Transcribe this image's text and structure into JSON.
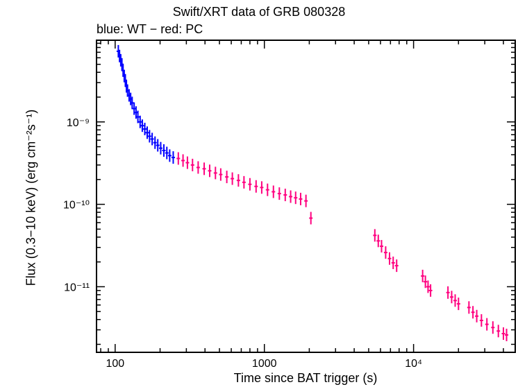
{
  "chart_data": {
    "type": "scatter",
    "title": "Swift/XRT data of GRB 080328",
    "subtitle": "blue: WT − red: PC",
    "xlabel": "Time since BAT trigger (s)",
    "ylabel": "Flux (0.3−10 keV) (erg cm⁻²s⁻¹)",
    "xscale": "log",
    "yscale": "log",
    "xlim": [
      75,
      48000
    ],
    "ylim": [
      1.6e-12,
      9.8e-09
    ],
    "x_ticks": [
      {
        "value": 100,
        "label": "100"
      },
      {
        "value": 1000,
        "label": "1000"
      },
      {
        "value": 10000,
        "label": "10⁴"
      }
    ],
    "y_ticks": [
      {
        "value": 1e-09,
        "label": "10⁻⁹"
      },
      {
        "value": 1e-10,
        "label": "10⁻¹⁰"
      },
      {
        "value": 1e-11,
        "label": "10⁻¹¹"
      }
    ],
    "grid": false,
    "legend": "none",
    "series": [
      {
        "name": "WT",
        "color": "#0000ff",
        "points": [
          [
            105,
            7.2e-09
          ],
          [
            107,
            6.3e-09
          ],
          [
            109,
            5.6e-09
          ],
          [
            111,
            5e-09
          ],
          [
            113,
            4.2e-09
          ],
          [
            115,
            3.6e-09
          ],
          [
            117,
            3.2e-09
          ],
          [
            119,
            2.7e-09
          ],
          [
            121,
            2.4e-09
          ],
          [
            124,
            2.1e-09
          ],
          [
            127,
            1.9e-09
          ],
          [
            130,
            1.7e-09
          ],
          [
            134,
            1.45e-09
          ],
          [
            138,
            1.3e-09
          ],
          [
            142,
            1.15e-09
          ],
          [
            147,
            1e-09
          ],
          [
            152,
            9e-10
          ],
          [
            158,
            8.2e-10
          ],
          [
            164,
            7.4e-10
          ],
          [
            170,
            6.7e-10
          ],
          [
            177,
            6.2e-10
          ],
          [
            185,
            5.6e-10
          ],
          [
            193,
            5.2e-10
          ],
          [
            202,
            4.8e-10
          ],
          [
            212,
            4.5e-10
          ],
          [
            222,
            4.2e-10
          ],
          [
            232,
            3.9e-10
          ],
          [
            245,
            3.7e-10
          ]
        ]
      },
      {
        "name": "PC",
        "color": "#ff007f",
        "points": [
          [
            265,
            3.6e-10
          ],
          [
            285,
            3.4e-10
          ],
          [
            305,
            3.2e-10
          ],
          [
            330,
            3e-10
          ],
          [
            360,
            2.8e-10
          ],
          [
            395,
            2.7e-10
          ],
          [
            430,
            2.55e-10
          ],
          [
            470,
            2.4e-10
          ],
          [
            510,
            2.3e-10
          ],
          [
            560,
            2.15e-10
          ],
          [
            610,
            2.05e-10
          ],
          [
            670,
            1.95e-10
          ],
          [
            730,
            1.85e-10
          ],
          [
            800,
            1.75e-10
          ],
          [
            880,
            1.65e-10
          ],
          [
            960,
            1.6e-10
          ],
          [
            1050,
            1.5e-10
          ],
          [
            1150,
            1.42e-10
          ],
          [
            1260,
            1.35e-10
          ],
          [
            1380,
            1.3e-10
          ],
          [
            1500,
            1.24e-10
          ],
          [
            1620,
            1.2e-10
          ],
          [
            1750,
            1.16e-10
          ],
          [
            1900,
            1.1e-10
          ],
          [
            2050,
            6.8e-11
          ],
          [
            5500,
            4.2e-11
          ],
          [
            5800,
            3.6e-11
          ],
          [
            6100,
            3.1e-11
          ],
          [
            6500,
            2.6e-11
          ],
          [
            6900,
            2.2e-11
          ],
          [
            7300,
            1.95e-11
          ],
          [
            7700,
            1.8e-11
          ],
          [
            11500,
            1.35e-11
          ],
          [
            12000,
            1.15e-11
          ],
          [
            12500,
            1e-11
          ],
          [
            13000,
            9e-12
          ],
          [
            17000,
            8.5e-12
          ],
          [
            18000,
            7.5e-12
          ],
          [
            19000,
            6.8e-12
          ],
          [
            20000,
            6.2e-12
          ],
          [
            23500,
            5.6e-12
          ],
          [
            25000,
            4.9e-12
          ],
          [
            26500,
            4.4e-12
          ],
          [
            28500,
            3.9e-12
          ],
          [
            31000,
            3.5e-12
          ],
          [
            34000,
            3.2e-12
          ],
          [
            37000,
            2.9e-12
          ],
          [
            40000,
            2.7e-12
          ],
          [
            42000,
            2.6e-12
          ]
        ]
      }
    ]
  }
}
